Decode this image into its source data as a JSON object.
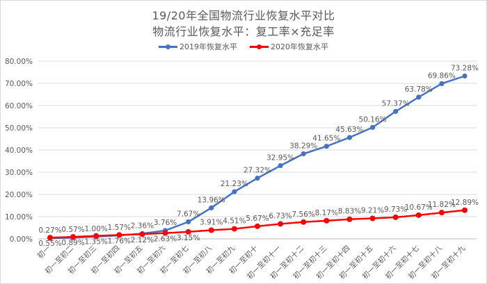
{
  "chart_data": {
    "type": "line",
    "title": "19/20年全国物流行业恢复水平对比",
    "subtitle": "物流行业恢复水平：复工率×充足率",
    "xlabel": "",
    "ylabel": "",
    "ylim": [
      0,
      80
    ],
    "y_ticks": [
      "0.00%",
      "10.00%",
      "20.00%",
      "30.00%",
      "40.00%",
      "50.00%",
      "60.00%",
      "70.00%",
      "80.00%"
    ],
    "grid": true,
    "legend_position": "top",
    "categories": [
      "初一",
      "初一至初二",
      "初一至初三",
      "初一至初四",
      "初一至初五",
      "初一至初六",
      "初一至初七",
      "初一至初八",
      "初一至初九",
      "初一至初十",
      "初一至初十一",
      "初一至初十二",
      "初一至初十三",
      "初一至初十四",
      "初一至初十五",
      "初一至初十六",
      "初一至初十七",
      "初一至初十八",
      "初一至初十九"
    ],
    "series": [
      {
        "name": "2019年恢复水平",
        "color": "#4472C4",
        "values": [
          0.27,
          0.57,
          1.0,
          1.57,
          2.36,
          3.76,
          7.67,
          13.96,
          21.23,
          27.32,
          32.95,
          38.29,
          41.65,
          45.63,
          50.16,
          57.37,
          63.78,
          69.86,
          73.28
        ],
        "labels": [
          "0.27%",
          "0.57%",
          "1.00%",
          "1.57%",
          "2.36%",
          "3.76%",
          "7.67%",
          "13.96%",
          "21.23%",
          "27.32%",
          "32.95%",
          "38.29%",
          "41.65%",
          "45.63%",
          "50.16%",
          "57.37%",
          "63.78%",
          "69.86%",
          "73.28%"
        ],
        "label_positions": [
          "above",
          "above",
          "above",
          "above",
          "above",
          "above",
          "above",
          "above",
          "above",
          "above",
          "above",
          "above",
          "above",
          "above",
          "above",
          "above",
          "above",
          "above",
          "above"
        ]
      },
      {
        "name": "2020年恢复水平",
        "color": "#FF0000",
        "values": [
          0.55,
          0.89,
          1.35,
          1.76,
          2.12,
          2.63,
          3.15,
          3.91,
          4.51,
          5.67,
          6.73,
          7.56,
          8.17,
          8.83,
          9.21,
          9.73,
          10.67,
          11.82,
          12.89
        ],
        "labels": [
          "0.55%",
          "0.89%",
          "1.35%",
          "1.76%",
          "2.12%",
          "2.63%",
          "3.15%",
          "3.91%",
          "4.51%",
          "5.67%",
          "6.73%",
          "7.56%",
          "8.17%",
          "8.83%",
          "9.21%",
          "9.73%",
          "10.67%",
          "11.82%",
          "12.89%"
        ],
        "label_positions": [
          "below",
          "below",
          "below",
          "below",
          "below",
          "below",
          "below",
          "above",
          "above",
          "above",
          "above",
          "above",
          "above",
          "above",
          "above",
          "above",
          "above",
          "above",
          "above"
        ]
      }
    ]
  },
  "legend": {
    "items": [
      {
        "label": "2019年恢复水平",
        "color": "#4472C4"
      },
      {
        "label": "2020年恢复水平",
        "color": "#FF0000"
      }
    ]
  }
}
